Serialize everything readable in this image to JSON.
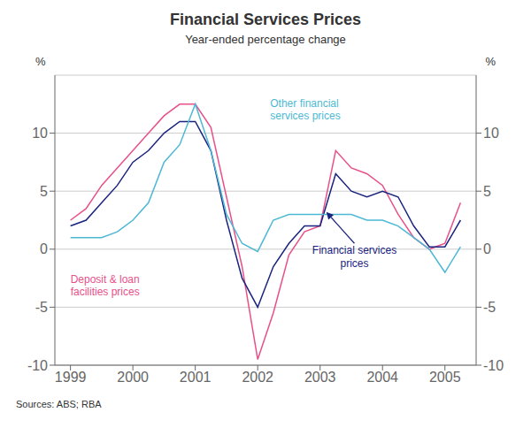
{
  "chart_data": {
    "type": "line",
    "title": "Financial Services Prices",
    "subtitle": "Year-ended percentage change",
    "source": "Sources: ABS; RBA",
    "y_label": "%",
    "y2_label": "%",
    "x": [
      1999.0,
      1999.25,
      1999.5,
      1999.75,
      2000.0,
      2000.25,
      2000.5,
      2000.75,
      2001.0,
      2001.25,
      2001.5,
      2001.75,
      2002.0,
      2002.25,
      2002.5,
      2002.75,
      2003.0,
      2003.25,
      2003.5,
      2003.75,
      2004.0,
      2004.25,
      2004.5,
      2004.75,
      2005.0,
      2005.25
    ],
    "series": [
      {
        "name": "Deposit & loan\nfacilities prices",
        "color": "#e8508a",
        "values": [
          2.5,
          3.5,
          5.5,
          7.0,
          8.5,
          10.0,
          11.5,
          12.5,
          12.5,
          10.5,
          4.5,
          -1.5,
          -9.5,
          -5.5,
          -0.5,
          1.5,
          2.0,
          8.5,
          7.0,
          6.5,
          5.5,
          3.0,
          1.0,
          0.0,
          0.5,
          4.0
        ]
      },
      {
        "name": "Financial services\nprices",
        "color": "#1a237e",
        "values": [
          2.0,
          2.5,
          4.0,
          5.5,
          7.5,
          8.5,
          10.0,
          11.0,
          11.0,
          8.5,
          2.5,
          -2.5,
          -5.0,
          -1.5,
          0.5,
          2.0,
          2.0,
          6.5,
          5.0,
          4.5,
          5.0,
          4.5,
          2.0,
          0.2,
          0.2,
          2.5
        ]
      },
      {
        "name": "Other financial\nservices prices",
        "color": "#4db8d4",
        "values": [
          1.0,
          1.0,
          1.0,
          1.5,
          2.5,
          4.0,
          7.5,
          9.0,
          12.5,
          8.5,
          3.0,
          0.5,
          -0.2,
          2.5,
          3.0,
          3.0,
          3.0,
          3.0,
          3.0,
          2.5,
          2.5,
          2.0,
          1.0,
          0.0,
          -2.0,
          0.2
        ]
      }
    ],
    "xlim": [
      1998.75,
      2005.5
    ],
    "xticks": [
      1999,
      2000,
      2001,
      2002,
      2003,
      2004,
      2005
    ],
    "ylim": [
      -10,
      15
    ],
    "yticks": [
      -10,
      -5,
      0,
      5,
      10
    ],
    "y2lim": [
      -10,
      15
    ],
    "y2ticks": [
      -10,
      -5,
      0,
      5,
      10
    ],
    "grid": true
  }
}
